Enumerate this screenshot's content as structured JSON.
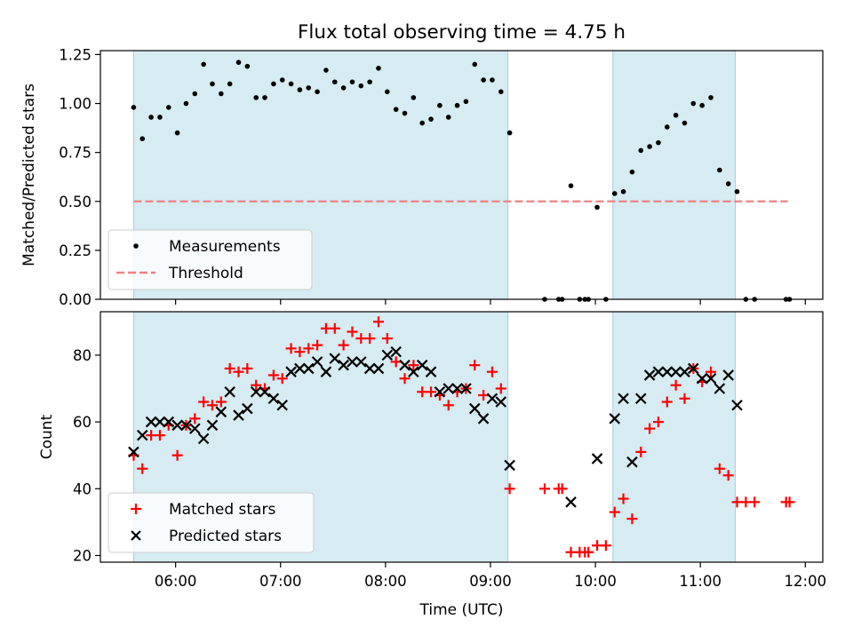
{
  "chart_data": [
    {
      "type": "scatter",
      "title": "Flux total observing time = 4.75 h",
      "xlabel": "",
      "ylabel": "Matched/Predicted stars",
      "ylim": [
        0,
        1.27
      ],
      "yticks": [
        0.0,
        0.25,
        0.5,
        0.75,
        1.0,
        1.25
      ],
      "ytick_labels": [
        "0.00",
        "0.25",
        "0.50",
        "0.75",
        "1.00",
        "1.25"
      ],
      "shaded_intervals": [
        [
          "05:36",
          "09:10"
        ],
        [
          "10:10",
          "11:20"
        ]
      ],
      "threshold": {
        "value": 0.5,
        "x_range": [
          "05:36",
          "11:50"
        ],
        "color": "#f08080"
      },
      "legend": {
        "position": "lower-left",
        "entries": [
          "Measurements",
          "Threshold"
        ]
      },
      "series": [
        {
          "name": "Measurements",
          "color": "#000000",
          "marker": "dot",
          "points": [
            [
              "05:36",
              0.98
            ],
            [
              "05:41",
              0.82
            ],
            [
              "05:46",
              0.93
            ],
            [
              "05:51",
              0.93
            ],
            [
              "05:56",
              0.98
            ],
            [
              "06:01",
              0.85
            ],
            [
              "06:06",
              1.0
            ],
            [
              "06:11",
              1.05
            ],
            [
              "06:16",
              1.2
            ],
            [
              "06:21",
              1.1
            ],
            [
              "06:26",
              1.05
            ],
            [
              "06:31",
              1.1
            ],
            [
              "06:36",
              1.21
            ],
            [
              "06:41",
              1.19
            ],
            [
              "06:46",
              1.03
            ],
            [
              "06:51",
              1.03
            ],
            [
              "06:56",
              1.1
            ],
            [
              "07:01",
              1.12
            ],
            [
              "07:06",
              1.1
            ],
            [
              "07:11",
              1.07
            ],
            [
              "07:16",
              1.08
            ],
            [
              "07:21",
              1.06
            ],
            [
              "07:26",
              1.17
            ],
            [
              "07:31",
              1.11
            ],
            [
              "07:36",
              1.08
            ],
            [
              "07:41",
              1.11
            ],
            [
              "07:46",
              1.09
            ],
            [
              "07:51",
              1.11
            ],
            [
              "07:56",
              1.18
            ],
            [
              "08:01",
              1.06
            ],
            [
              "08:06",
              0.97
            ],
            [
              "08:11",
              0.95
            ],
            [
              "08:16",
              1.03
            ],
            [
              "08:21",
              0.9
            ],
            [
              "08:26",
              0.92
            ],
            [
              "08:31",
              0.99
            ],
            [
              "08:36",
              0.93
            ],
            [
              "08:41",
              0.99
            ],
            [
              "08:46",
              1.01
            ],
            [
              "08:51",
              1.2
            ],
            [
              "08:56",
              1.12
            ],
            [
              "09:01",
              1.12
            ],
            [
              "09:06",
              1.06
            ],
            [
              "09:11",
              0.85
            ],
            [
              "09:31",
              0.0
            ],
            [
              "09:39",
              0.0
            ],
            [
              "09:41",
              0.0
            ],
            [
              "09:46",
              0.58
            ],
            [
              "09:51",
              0.0
            ],
            [
              "09:54",
              0.0
            ],
            [
              "09:56",
              0.0
            ],
            [
              "10:01",
              0.47
            ],
            [
              "10:06",
              0.0
            ],
            [
              "10:11",
              0.54
            ],
            [
              "10:16",
              0.55
            ],
            [
              "10:21",
              0.65
            ],
            [
              "10:26",
              0.76
            ],
            [
              "10:31",
              0.78
            ],
            [
              "10:36",
              0.8
            ],
            [
              "10:41",
              0.88
            ],
            [
              "10:46",
              0.94
            ],
            [
              "10:51",
              0.9
            ],
            [
              "10:56",
              1.0
            ],
            [
              "11:01",
              0.99
            ],
            [
              "11:06",
              1.03
            ],
            [
              "11:11",
              0.66
            ],
            [
              "11:16",
              0.59
            ],
            [
              "11:21",
              0.55
            ],
            [
              "11:26",
              0.0
            ],
            [
              "11:31",
              0.0
            ],
            [
              "11:49",
              0.0
            ],
            [
              "11:51",
              0.0
            ]
          ]
        }
      ]
    },
    {
      "type": "scatter",
      "title": "",
      "xlabel": "Time (UTC)",
      "ylabel": "Count",
      "ylim": [
        18,
        93
      ],
      "yticks": [
        20,
        40,
        60,
        80
      ],
      "ytick_labels": [
        "20",
        "40",
        "60",
        "80"
      ],
      "xticks": [
        "06:00",
        "07:00",
        "08:00",
        "09:00",
        "10:00",
        "11:00",
        "12:00"
      ],
      "x_axis_type": "time",
      "xlim": [
        "05:17",
        "12:10"
      ],
      "shaded_intervals": [
        [
          "05:36",
          "09:10"
        ],
        [
          "10:10",
          "11:20"
        ]
      ],
      "legend": {
        "position": "lower-left",
        "entries": [
          "Matched stars",
          "Predicted stars"
        ]
      },
      "series": [
        {
          "name": "Matched stars",
          "color": "#ff0000",
          "marker": "plus",
          "points": [
            [
              "05:36",
              50
            ],
            [
              "05:41",
              46
            ],
            [
              "05:46",
              56
            ],
            [
              "05:51",
              56
            ],
            [
              "05:56",
              59
            ],
            [
              "06:01",
              50
            ],
            [
              "06:06",
              59
            ],
            [
              "06:11",
              61
            ],
            [
              "06:16",
              66
            ],
            [
              "06:21",
              65
            ],
            [
              "06:26",
              66
            ],
            [
              "06:31",
              76
            ],
            [
              "06:36",
              75
            ],
            [
              "06:41",
              76
            ],
            [
              "06:46",
              71
            ],
            [
              "06:51",
              70
            ],
            [
              "06:56",
              74
            ],
            [
              "07:01",
              73
            ],
            [
              "07:06",
              82
            ],
            [
              "07:11",
              81
            ],
            [
              "07:16",
              82
            ],
            [
              "07:21",
              83
            ],
            [
              "07:26",
              88
            ],
            [
              "07:31",
              88
            ],
            [
              "07:36",
              83
            ],
            [
              "07:41",
              87
            ],
            [
              "07:46",
              85
            ],
            [
              "07:51",
              85
            ],
            [
              "07:56",
              90
            ],
            [
              "08:01",
              85
            ],
            [
              "08:06",
              78
            ],
            [
              "08:11",
              73
            ],
            [
              "08:16",
              77
            ],
            [
              "08:21",
              69
            ],
            [
              "08:26",
              69
            ],
            [
              "08:31",
              68
            ],
            [
              "08:36",
              65
            ],
            [
              "08:41",
              69
            ],
            [
              "08:46",
              70
            ],
            [
              "08:51",
              77
            ],
            [
              "08:56",
              68
            ],
            [
              "09:01",
              75
            ],
            [
              "09:06",
              70
            ],
            [
              "09:11",
              40
            ],
            [
              "09:31",
              40
            ],
            [
              "09:39",
              40
            ],
            [
              "09:41",
              40
            ],
            [
              "09:46",
              21
            ],
            [
              "09:51",
              21
            ],
            [
              "09:54",
              21
            ],
            [
              "09:56",
              21
            ],
            [
              "10:01",
              23
            ],
            [
              "10:06",
              23
            ],
            [
              "10:11",
              33
            ],
            [
              "10:16",
              37
            ],
            [
              "10:21",
              31
            ],
            [
              "10:26",
              51
            ],
            [
              "10:31",
              58
            ],
            [
              "10:36",
              60
            ],
            [
              "10:41",
              66
            ],
            [
              "10:46",
              71
            ],
            [
              "10:51",
              67
            ],
            [
              "10:56",
              76
            ],
            [
              "11:01",
              72
            ],
            [
              "11:06",
              75
            ],
            [
              "11:11",
              46
            ],
            [
              "11:16",
              44
            ],
            [
              "11:21",
              36
            ],
            [
              "11:26",
              36
            ],
            [
              "11:31",
              36
            ],
            [
              "11:49",
              36
            ],
            [
              "11:51",
              36
            ]
          ]
        },
        {
          "name": "Predicted stars",
          "color": "#000000",
          "marker": "x",
          "points": [
            [
              "05:36",
              51
            ],
            [
              "05:41",
              56
            ],
            [
              "05:46",
              60
            ],
            [
              "05:51",
              60
            ],
            [
              "05:56",
              60
            ],
            [
              "06:01",
              59
            ],
            [
              "06:06",
              59
            ],
            [
              "06:11",
              58
            ],
            [
              "06:16",
              55
            ],
            [
              "06:21",
              59
            ],
            [
              "06:26",
              63
            ],
            [
              "06:31",
              69
            ],
            [
              "06:36",
              62
            ],
            [
              "06:41",
              64
            ],
            [
              "06:46",
              69
            ],
            [
              "06:51",
              69
            ],
            [
              "06:56",
              67
            ],
            [
              "07:01",
              65
            ],
            [
              "07:06",
              75
            ],
            [
              "07:11",
              76
            ],
            [
              "07:16",
              76
            ],
            [
              "07:21",
              78
            ],
            [
              "07:26",
              75
            ],
            [
              "07:31",
              79
            ],
            [
              "07:36",
              77
            ],
            [
              "07:41",
              78
            ],
            [
              "07:46",
              78
            ],
            [
              "07:51",
              76
            ],
            [
              "07:56",
              76
            ],
            [
              "08:01",
              80
            ],
            [
              "08:06",
              81
            ],
            [
              "08:11",
              77
            ],
            [
              "08:16",
              75
            ],
            [
              "08:21",
              77
            ],
            [
              "08:26",
              75
            ],
            [
              "08:31",
              69
            ],
            [
              "08:36",
              70
            ],
            [
              "08:41",
              70
            ],
            [
              "08:46",
              70
            ],
            [
              "08:51",
              64
            ],
            [
              "08:56",
              61
            ],
            [
              "09:01",
              67
            ],
            [
              "09:06",
              66
            ],
            [
              "09:11",
              47
            ],
            [
              "09:46",
              36
            ],
            [
              "10:01",
              49
            ],
            [
              "10:11",
              61
            ],
            [
              "10:16",
              67
            ],
            [
              "10:21",
              48
            ],
            [
              "10:26",
              67
            ],
            [
              "10:31",
              74
            ],
            [
              "10:36",
              75
            ],
            [
              "10:41",
              75
            ],
            [
              "10:46",
              75
            ],
            [
              "10:51",
              75
            ],
            [
              "10:56",
              76
            ],
            [
              "11:01",
              73
            ],
            [
              "11:06",
              73
            ],
            [
              "11:11",
              70
            ],
            [
              "11:16",
              74
            ],
            [
              "11:21",
              65
            ]
          ]
        }
      ]
    }
  ]
}
